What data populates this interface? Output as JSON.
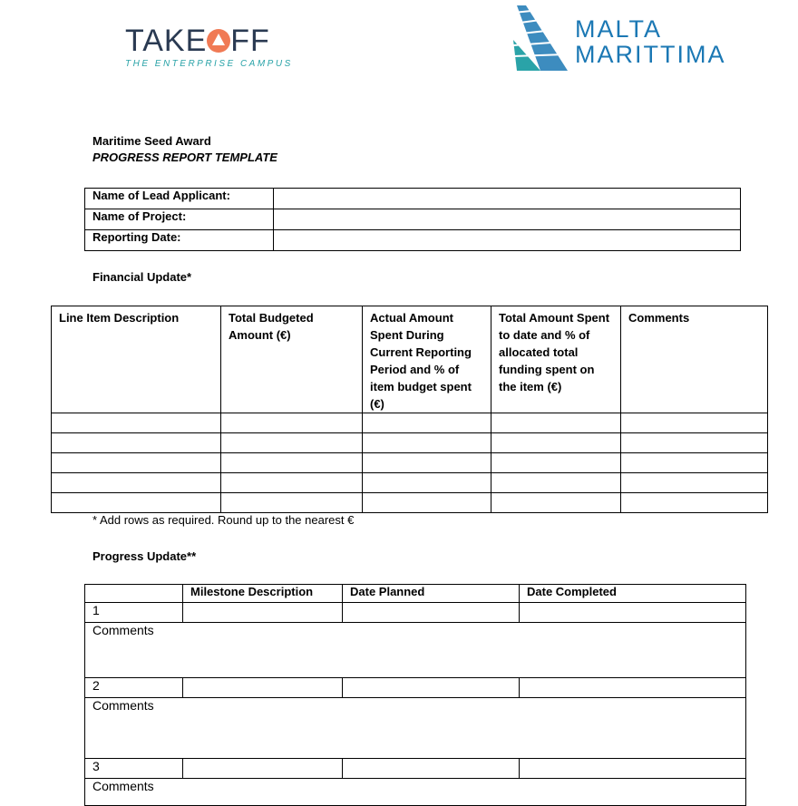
{
  "logos": {
    "takeoff": {
      "name": "TAKEOFF",
      "tagline": "THE ENTERPRISE CAMPUS",
      "color": "#2a3a52",
      "accent": "#f07a55"
    },
    "malta": {
      "line1": "MALTA",
      "line2": "MARITTIMA",
      "color": "#1b78b4"
    }
  },
  "header": {
    "title": "Maritime Seed Award",
    "subtitle": "PROGRESS REPORT TEMPLATE"
  },
  "info_table": [
    {
      "label": "Name of Lead Applicant:",
      "value": ""
    },
    {
      "label": "Name of Project:",
      "value": ""
    },
    {
      "label": "Reporting Date:",
      "value": ""
    }
  ],
  "financial": {
    "heading": "Financial Update*",
    "columns": [
      "Line Item Description",
      "Total Budgeted Amount (€)",
      "Actual Amount Spent During Current Reporting Period and % of item budget spent (€)",
      "Total Amount Spent to date and % of allocated total funding spent on the item (€)",
      "Comments"
    ],
    "rows": [
      [
        "",
        "",
        "",
        "",
        ""
      ],
      [
        "",
        "",
        "",
        "",
        ""
      ],
      [
        "",
        "",
        "",
        "",
        ""
      ],
      [
        "",
        "",
        "",
        "",
        ""
      ],
      [
        "",
        "",
        "",
        "",
        ""
      ]
    ],
    "footnote": "* Add rows as required. Round up to the nearest €"
  },
  "progress": {
    "heading": "Progress Update**",
    "columns": [
      "",
      "Milestone Description",
      "Date Planned",
      "Date Completed"
    ],
    "milestones": [
      {
        "num": "1",
        "comments": "Comments"
      },
      {
        "num": "2",
        "comments": "Comments"
      },
      {
        "num": "3",
        "comments": "Comments"
      }
    ]
  }
}
